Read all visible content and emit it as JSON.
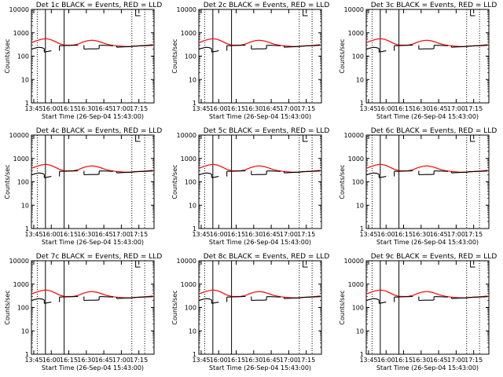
{
  "figure": {
    "x_axis_title": "Start Time (26-Sep-04 15:43:00)",
    "y_axis_title": "Counts/sec",
    "x_tick_labels": [
      "13:45",
      "16:00",
      "16:15",
      "16:30",
      "16:45",
      "17:00",
      "17:15"
    ]
  },
  "chart_data": [
    {
      "type": "line",
      "panel": "Det 1",
      "title": "Det 1c BLACK = Events, RED = LLD",
      "xlabel": "Start Time (26-Sep-04 15:43:00)",
      "ylabel": "Counts/sec",
      "scale_y": "log",
      "ylim": [
        1,
        10000
      ],
      "y_ticks": [
        1,
        10,
        100,
        1000,
        10000
      ],
      "x_ticks": [
        "13:45",
        "16:00",
        "16:15",
        "16:30",
        "16:45",
        "17:00",
        "17:15"
      ],
      "legend": "BLACK = Events, RED = LLD"
    },
    {
      "type": "line",
      "panel": "Det 2",
      "title": "Det 2c BLACK = Events, RED = LLD",
      "xlabel": "Start Time (26-Sep-04 15:43:00)",
      "ylabel": "Counts/sec",
      "scale_y": "log",
      "ylim": [
        1,
        10000
      ],
      "y_ticks": [
        1,
        10,
        100,
        1000,
        10000
      ],
      "x_ticks": [
        "13:45",
        "16:00",
        "16:15",
        "16:30",
        "16:45",
        "17:00",
        "17:15"
      ],
      "legend": "BLACK = Events, RED = LLD"
    },
    {
      "type": "line",
      "panel": "Det 3",
      "title": "Det 3c BLACK = Events, RED = LLD",
      "xlabel": "Start Time (26-Sep-04 15:43:00)",
      "ylabel": "Counts/sec",
      "scale_y": "log",
      "ylim": [
        1,
        10000
      ],
      "y_ticks": [
        1,
        10,
        100,
        1000,
        10000
      ],
      "x_ticks": [
        "13:45",
        "16:00",
        "16:15",
        "16:30",
        "16:45",
        "17:00",
        "17:15"
      ],
      "legend": "BLACK = Events, RED = LLD"
    },
    {
      "type": "line",
      "panel": "Det 4",
      "title": "Det 4c BLACK = Events, RED = LLD",
      "xlabel": "Start Time (26-Sep-04 15:43:00)",
      "ylabel": "Counts/sec",
      "scale_y": "log",
      "ylim": [
        1,
        10000
      ],
      "y_ticks": [
        1,
        10,
        100,
        1000,
        10000
      ],
      "x_ticks": [
        "13:45",
        "16:00",
        "16:15",
        "16:30",
        "16:45",
        "17:00",
        "17:15"
      ],
      "legend": "BLACK = Events, RED = LLD"
    },
    {
      "type": "line",
      "panel": "Det 5",
      "title": "Det 5c BLACK = Events, RED = LLD",
      "xlabel": "Start Time (26-Sep-04 15:43:00)",
      "ylabel": "Counts/sec",
      "scale_y": "log",
      "ylim": [
        1,
        10000
      ],
      "y_ticks": [
        1,
        10,
        100,
        1000,
        10000
      ],
      "x_ticks": [
        "13:45",
        "16:00",
        "16:15",
        "16:30",
        "16:45",
        "17:00",
        "17:15"
      ],
      "legend": "BLACK = Events, RED = LLD"
    },
    {
      "type": "line",
      "panel": "Det 6",
      "title": "Det 6c BLACK = Events, RED = LLD",
      "xlabel": "Start Time (26-Sep-04 15:43:00)",
      "ylabel": "Counts/sec",
      "scale_y": "log",
      "ylim": [
        1,
        10000
      ],
      "y_ticks": [
        1,
        10,
        100,
        1000,
        10000
      ],
      "x_ticks": [
        "13:45",
        "16:00",
        "16:15",
        "16:30",
        "16:45",
        "17:00",
        "17:15"
      ],
      "legend": "BLACK = Events, RED = LLD"
    },
    {
      "type": "line",
      "panel": "Det 7",
      "title": "Det 7c BLACK = Events, RED = LLD",
      "xlabel": "Start Time (26-Sep-04 15:43:00)",
      "ylabel": "Counts/sec",
      "scale_y": "log",
      "ylim": [
        1,
        10000
      ],
      "y_ticks": [
        1,
        10,
        100,
        1000,
        10000
      ],
      "x_ticks": [
        "13:45",
        "16:00",
        "16:15",
        "16:30",
        "16:45",
        "17:00",
        "17:15"
      ],
      "legend": "BLACK = Events, RED = LLD"
    },
    {
      "type": "line",
      "panel": "Det 8",
      "title": "Det 8c BLACK = Events, RED = LLD",
      "xlabel": "Start Time (26-Sep-04 15:43:00)",
      "ylabel": "Counts/sec",
      "scale_y": "log",
      "ylim": [
        1,
        10000
      ],
      "y_ticks": [
        1,
        10,
        100,
        1000,
        10000
      ],
      "x_ticks": [
        "13:45",
        "16:00",
        "16:15",
        "16:30",
        "16:45",
        "17:00",
        "17:15"
      ],
      "legend": "BLACK = Events, RED = LLD"
    },
    {
      "type": "line",
      "panel": "Det 9",
      "title": "Det 9c BLACK = Events, RED = LLD",
      "xlabel": "Start Time (26-Sep-04 15:43:00)",
      "ylabel": "Counts/sec",
      "scale_y": "log",
      "ylim": [
        1,
        10000
      ],
      "y_ticks": [
        1,
        10,
        100,
        1000,
        10000
      ],
      "x_ticks": [
        "13:45",
        "16:00",
        "16:15",
        "16:30",
        "16:45",
        "17:00",
        "17:15"
      ],
      "legend": "BLACK = Events, RED = LLD"
    }
  ],
  "series_shared": {
    "x_minutes": [
      0,
      5,
      10,
      15,
      20,
      25,
      30,
      35,
      40,
      45,
      50,
      55,
      60,
      65,
      70,
      75,
      80,
      85,
      90,
      95,
      100,
      105
    ],
    "events_black": {
      "name": "Events",
      "color": "#000000",
      "segments": [
        {
          "x": [
            0,
            3,
            6,
            9,
            11
          ],
          "y": [
            200,
            220,
            240,
            230,
            210
          ]
        },
        {
          "x": [
            11,
            14,
            17
          ],
          "y": [
            150,
            160,
            170
          ]
        },
        {
          "x": [
            24,
            30,
            36,
            40
          ],
          "y": [
            280,
            285,
            290,
            295
          ]
        },
        {
          "x": [
            45,
            50,
            55,
            58
          ],
          "y": [
            200,
            205,
            205,
            210
          ]
        },
        {
          "x": [
            58,
            62,
            66,
            70
          ],
          "y": [
            290,
            290,
            285,
            280
          ]
        },
        {
          "x": [
            73,
            78,
            83,
            87
          ],
          "y": [
            240,
            250,
            255,
            260
          ]
        },
        {
          "x": [
            87,
            92,
            97,
            104
          ],
          "y": [
            270,
            275,
            280,
            290
          ]
        }
      ]
    },
    "lld_red": {
      "name": "LLD",
      "color": "#ff0000",
      "x": [
        0,
        4,
        8,
        12,
        16,
        20,
        24,
        28,
        32,
        36,
        40,
        44,
        48,
        52,
        56,
        60,
        64,
        68,
        72,
        76,
        80,
        84,
        88,
        92,
        96,
        100,
        104
      ],
      "y": [
        380,
        450,
        520,
        560,
        520,
        430,
        340,
        300,
        295,
        300,
        330,
        400,
        460,
        480,
        450,
        390,
        330,
        300,
        280,
        270,
        260,
        260,
        265,
        275,
        285,
        295,
        310
      ]
    },
    "vertical_markers": {
      "solid_minutes": [
        12,
        28
      ],
      "dotted_minutes": [
        5,
        86,
        97
      ]
    }
  }
}
